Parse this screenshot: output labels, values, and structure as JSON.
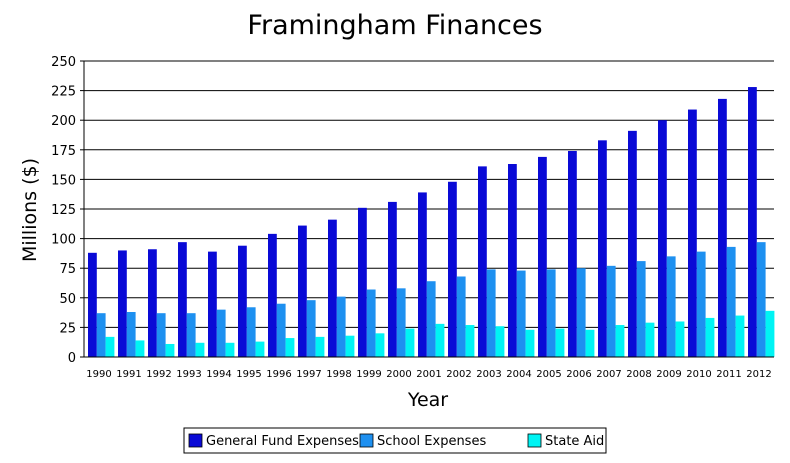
{
  "chart_data": {
    "type": "bar",
    "title": "Framingham Finances",
    "xlabel": "Year",
    "ylabel": "Millions ($)",
    "ylim": [
      0,
      250
    ],
    "yticks": [
      0,
      25,
      50,
      75,
      100,
      125,
      150,
      175,
      200,
      225,
      250
    ],
    "grid": "horizontal",
    "legend_position": "bottom",
    "categories": [
      "1990",
      "1991",
      "1992",
      "1993",
      "1994",
      "1995",
      "1996",
      "1997",
      "1998",
      "1999",
      "2000",
      "2001",
      "2002",
      "2003",
      "2004",
      "2005",
      "2006",
      "2007",
      "2008",
      "2009",
      "2010",
      "2011",
      "2012"
    ],
    "series": [
      {
        "name": "General Fund Expenses",
        "color": "#0a0ad6",
        "values": [
          88,
          90,
          91,
          97,
          89,
          94,
          104,
          111,
          116,
          126,
          131,
          139,
          148,
          161,
          163,
          169,
          174,
          183,
          191,
          200,
          209,
          218,
          228
        ]
      },
      {
        "name": "School Expenses",
        "color": "#1e90f0",
        "values": [
          37,
          38,
          37,
          37,
          40,
          42,
          45,
          48,
          51,
          57,
          58,
          64,
          68,
          74,
          73,
          74,
          75,
          77,
          81,
          85,
          89,
          93,
          97
        ]
      },
      {
        "name": "State Aid",
        "color": "#00f4f4",
        "values": [
          17,
          14,
          11,
          12,
          12,
          13,
          16,
          17,
          18,
          20,
          24,
          28,
          27,
          26,
          23,
          24,
          23,
          27,
          29,
          30,
          33,
          35,
          39
        ]
      }
    ]
  }
}
